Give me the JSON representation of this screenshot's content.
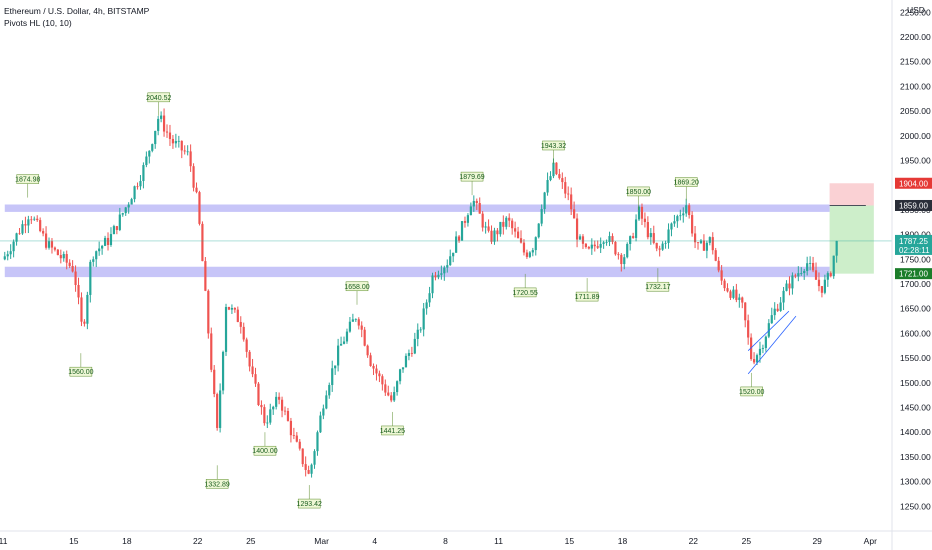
{
  "legend": {
    "title": "Ethereum / U.S. Dollar, 4h, BITSTAMP",
    "indicator": "Pivots HL (10, 10)"
  },
  "price_axis": {
    "currency": "USD"
  },
  "colors": {
    "up": "#26a69a",
    "down": "#ef5350",
    "zone": "#b4b2f5",
    "tag_bg": "#eef7d6",
    "tag_border": "#5b8c2a",
    "stop_zone": "#f9c9cc",
    "target_zone": "#c8ecc4",
    "last_price": "#26a69a",
    "stop_label": "#e53935",
    "target_label": "#1b7d2a",
    "entry_label": "#2a2e39"
  },
  "chart_data": {
    "type": "candlestick",
    "title": "Ethereum / U.S. Dollar, 4h, BITSTAMP",
    "ylim": [
      1200,
      2275
    ],
    "y_ticks": [
      1250,
      1300,
      1350,
      1400,
      1450,
      1500,
      1550,
      1600,
      1650,
      1700,
      1750,
      1800,
      1850,
      1900,
      1950,
      2000,
      2050,
      2100,
      2150,
      2200,
      2250
    ],
    "y_tick_labels": [
      "1250.00",
      "1300.00",
      "1350.00",
      "1400.00",
      "1450.00",
      "1500.00",
      "1550.00",
      "1600.00",
      "1650.00",
      "1700.00",
      "1750.00",
      "1800.00",
      "1850.00",
      "1900.00",
      "1950.00",
      "2000.00",
      "2050.00",
      "2100.00",
      "2150.00",
      "2200.00",
      "2250.00"
    ],
    "x_ticks": [
      {
        "label": "11",
        "day": 0
      },
      {
        "label": "15",
        "day": 4
      },
      {
        "label": "18",
        "day": 7
      },
      {
        "label": "22",
        "day": 11
      },
      {
        "label": "25",
        "day": 14
      },
      {
        "label": "Mar",
        "day": 18
      },
      {
        "label": "4",
        "day": 21
      },
      {
        "label": "8",
        "day": 25
      },
      {
        "label": "11",
        "day": 28
      },
      {
        "label": "15",
        "day": 32
      },
      {
        "label": "18",
        "day": 35
      },
      {
        "label": "22",
        "day": 39
      },
      {
        "label": "25",
        "day": 42
      },
      {
        "label": "29",
        "day": 46
      },
      {
        "label": "Apr",
        "day": 49
      }
    ],
    "anchors": [
      [
        0,
        1750
      ],
      [
        1.5,
        1845
      ],
      [
        2.5,
        1780
      ],
      [
        4,
        1730
      ],
      [
        4.5,
        1600
      ],
      [
        5,
        1760
      ],
      [
        6,
        1790
      ],
      [
        7,
        1860
      ],
      [
        8,
        1940
      ],
      [
        8.8,
        2040
      ],
      [
        9.5,
        1990
      ],
      [
        10.5,
        1960
      ],
      [
        11,
        1860
      ],
      [
        11.7,
        1560
      ],
      [
        12.1,
        1400
      ],
      [
        12.6,
        1660
      ],
      [
        13.5,
        1620
      ],
      [
        14,
        1520
      ],
      [
        14.8,
        1420
      ],
      [
        15.6,
        1470
      ],
      [
        16.5,
        1380
      ],
      [
        17.3,
        1310
      ],
      [
        18.2,
        1480
      ],
      [
        19,
        1570
      ],
      [
        20,
        1640
      ],
      [
        20.8,
        1540
      ],
      [
        22,
        1460
      ],
      [
        22.5,
        1530
      ],
      [
        23.5,
        1600
      ],
      [
        24.3,
        1720
      ],
      [
        25.1,
        1745
      ],
      [
        26,
        1820
      ],
      [
        26.5,
        1875
      ],
      [
        27.5,
        1790
      ],
      [
        28.5,
        1830
      ],
      [
        29.5,
        1760
      ],
      [
        30,
        1780
      ],
      [
        30.5,
        1875
      ],
      [
        31.1,
        1935
      ],
      [
        32,
        1870
      ],
      [
        32.5,
        1790
      ],
      [
        33,
        1760
      ],
      [
        34,
        1800
      ],
      [
        35,
        1750
      ],
      [
        35.5,
        1790
      ],
      [
        35.9,
        1848
      ],
      [
        36.5,
        1800
      ],
      [
        37,
        1760
      ],
      [
        37.8,
        1820
      ],
      [
        38.6,
        1862
      ],
      [
        39.2,
        1770
      ],
      [
        40,
        1790
      ],
      [
        40.5,
        1710
      ],
      [
        41.2,
        1680
      ],
      [
        41.8,
        1650
      ],
      [
        42.3,
        1545
      ],
      [
        42.8,
        1570
      ],
      [
        43.5,
        1640
      ],
      [
        44.4,
        1700
      ],
      [
        45.4,
        1745
      ],
      [
        46.2,
        1690
      ],
      [
        46.7,
        1715
      ],
      [
        47.1,
        1787.25
      ]
    ],
    "last_price": "1787.25",
    "countdown": "02:28:11",
    "pivots": [
      {
        "label": "1874.98",
        "day": 1.4,
        "price": 1875,
        "type": "high"
      },
      {
        "label": "1560.00",
        "day": 4.4,
        "price": 1560,
        "type": "low"
      },
      {
        "label": "2040.52",
        "day": 8.8,
        "price": 2040.5,
        "type": "high"
      },
      {
        "label": "1332.89",
        "day": 12.1,
        "price": 1333,
        "type": "low"
      },
      {
        "label": "1400.00",
        "day": 14.8,
        "price": 1400,
        "type": "low"
      },
      {
        "label": "1293.42",
        "day": 17.3,
        "price": 1293,
        "type": "low"
      },
      {
        "label": "1658.00",
        "day": 20.0,
        "price": 1658,
        "type": "high"
      },
      {
        "label": "1441.25",
        "day": 22.0,
        "price": 1441,
        "type": "low"
      },
      {
        "label": "1879.69",
        "day": 26.5,
        "price": 1880,
        "type": "high"
      },
      {
        "label": "1720.55",
        "day": 29.5,
        "price": 1720.5,
        "type": "low"
      },
      {
        "label": "1943.32",
        "day": 31.1,
        "price": 1943,
        "type": "high"
      },
      {
        "label": "1711.89",
        "day": 33.0,
        "price": 1712,
        "type": "low"
      },
      {
        "label": "1850.00",
        "day": 35.9,
        "price": 1850,
        "type": "high"
      },
      {
        "label": "1732.17",
        "day": 37.0,
        "price": 1732,
        "type": "low"
      },
      {
        "label": "1869.20",
        "day": 38.6,
        "price": 1869,
        "type": "high"
      },
      {
        "label": "1520.00",
        "day": 42.3,
        "price": 1520,
        "type": "low"
      }
    ],
    "zones": [
      {
        "from_day": 0.1,
        "to_day": 46.7,
        "low": 1846,
        "high": 1861
      },
      {
        "from_day": 0.1,
        "to_day": 46.7,
        "low": 1714,
        "high": 1735
      }
    ],
    "position": {
      "entry": 1859,
      "stop": 1904,
      "target": 1721,
      "from_day": 46.7,
      "to_day": 49.2,
      "entry_label": "1859.00",
      "stop_label": "1904.00",
      "target_label": "1721.00"
    },
    "channel": {
      "lower": [
        [
          42.1,
          1518
        ],
        [
          44.8,
          1635
        ]
      ],
      "upper": [
        [
          42.1,
          1565
        ],
        [
          44.4,
          1645
        ]
      ]
    },
    "grid": false
  }
}
